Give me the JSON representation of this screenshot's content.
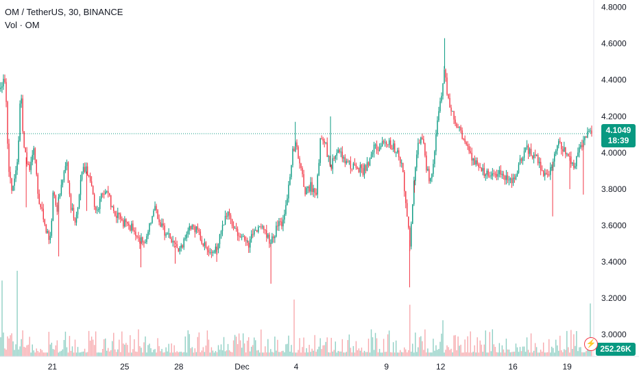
{
  "legend": {
    "symbol_line": "OM / TetherUS, 30, BINANCE",
    "volume_line": "Vol · OM"
  },
  "colors": {
    "up": "#089981",
    "down": "#f23645",
    "up_volume": "#8fcfc4",
    "down_volume": "#f7a9ad",
    "price_line": "#089981"
  },
  "icons": {
    "alert": "lightning-bolt-icon"
  },
  "current": {
    "price": "4.1049",
    "countdown": "18:39",
    "volume": "252.26K"
  },
  "chart_data": {
    "type": "candlestick",
    "symbol": "OM / TetherUS",
    "interval": "30",
    "exchange": "BINANCE",
    "ylim": [
      2.88,
      4.84
    ],
    "y_ticks": [
      "4.8000",
      "4.6000",
      "4.4000",
      "4.2000",
      "4.0000",
      "3.8000",
      "3.6000",
      "3.4000",
      "3.2000",
      "3.0000"
    ],
    "y_tick_values": [
      4.8,
      4.6,
      4.4,
      4.2,
      4.0,
      3.8,
      3.6,
      3.4,
      3.2,
      3.0
    ],
    "x_ticks": [
      "21",
      "25",
      "28",
      "Dec",
      "4",
      "9",
      "12",
      "16",
      "19"
    ],
    "x_tick_positions": [
      3.5,
      7.5,
      10.5,
      14,
      17,
      22,
      25,
      29,
      32
    ],
    "x_range": [
      0.6,
      33.4
    ],
    "last_price": 4.1049,
    "price_path": [
      [
        0.6,
        4.35
      ],
      [
        0.9,
        4.42
      ],
      [
        1.0,
        4.1
      ],
      [
        1.1,
        3.9
      ],
      [
        1.3,
        3.78
      ],
      [
        1.6,
        4.0
      ],
      [
        1.75,
        4.35
      ],
      [
        1.9,
        4.05
      ],
      [
        2.2,
        3.9
      ],
      [
        2.5,
        4.03
      ],
      [
        2.75,
        3.72
      ],
      [
        3.0,
        3.65
      ],
      [
        3.2,
        3.55
      ],
      [
        3.4,
        3.52
      ],
      [
        3.55,
        3.78
      ],
      [
        3.75,
        3.68
      ],
      [
        4.1,
        3.88
      ],
      [
        4.3,
        3.95
      ],
      [
        4.5,
        3.7
      ],
      [
        4.8,
        3.62
      ],
      [
        5.1,
        3.88
      ],
      [
        5.3,
        3.92
      ],
      [
        5.6,
        3.85
      ],
      [
        5.9,
        3.66
      ],
      [
        6.2,
        3.76
      ],
      [
        6.5,
        3.8
      ],
      [
        6.8,
        3.7
      ],
      [
        7.1,
        3.65
      ],
      [
        7.4,
        3.62
      ],
      [
        7.7,
        3.6
      ],
      [
        8.0,
        3.58
      ],
      [
        8.3,
        3.53
      ],
      [
        8.6,
        3.48
      ],
      [
        8.9,
        3.62
      ],
      [
        9.2,
        3.7
      ],
      [
        9.5,
        3.6
      ],
      [
        9.8,
        3.55
      ],
      [
        10.1,
        3.52
      ],
      [
        10.4,
        3.47
      ],
      [
        10.7,
        3.5
      ],
      [
        11.0,
        3.56
      ],
      [
        11.3,
        3.6
      ],
      [
        11.6,
        3.55
      ],
      [
        11.9,
        3.5
      ],
      [
        12.2,
        3.47
      ],
      [
        12.5,
        3.45
      ],
      [
        12.8,
        3.55
      ],
      [
        13.1,
        3.65
      ],
      [
        13.3,
        3.68
      ],
      [
        13.5,
        3.58
      ],
      [
        13.8,
        3.55
      ],
      [
        14.1,
        3.52
      ],
      [
        14.4,
        3.5
      ],
      [
        14.7,
        3.57
      ],
      [
        15.0,
        3.6
      ],
      [
        15.3,
        3.55
      ],
      [
        15.6,
        3.5
      ],
      [
        15.9,
        3.58
      ],
      [
        16.2,
        3.62
      ],
      [
        16.5,
        3.75
      ],
      [
        16.8,
        4.0
      ],
      [
        17.0,
        4.05
      ],
      [
        17.2,
        3.95
      ],
      [
        17.5,
        3.78
      ],
      [
        17.8,
        3.82
      ],
      [
        18.1,
        3.76
      ],
      [
        18.35,
        4.08
      ],
      [
        18.6,
        4.05
      ],
      [
        18.9,
        3.92
      ],
      [
        19.2,
        4.0
      ],
      [
        19.5,
        3.98
      ],
      [
        19.8,
        3.95
      ],
      [
        20.1,
        3.93
      ],
      [
        20.4,
        3.92
      ],
      [
        20.7,
        3.9
      ],
      [
        21.0,
        3.95
      ],
      [
        21.3,
        4.03
      ],
      [
        21.6,
        4.02
      ],
      [
        21.9,
        4.07
      ],
      [
        22.2,
        4.05
      ],
      [
        22.5,
        4.02
      ],
      [
        22.7,
        3.98
      ],
      [
        22.9,
        3.9
      ],
      [
        23.1,
        3.7
      ],
      [
        23.3,
        3.5
      ],
      [
        23.5,
        3.8
      ],
      [
        23.75,
        4.05
      ],
      [
        24.0,
        4.1
      ],
      [
        24.2,
        3.92
      ],
      [
        24.4,
        3.85
      ],
      [
        24.6,
        3.95
      ],
      [
        24.85,
        4.2
      ],
      [
        25.05,
        4.3
      ],
      [
        25.2,
        4.48
      ],
      [
        25.4,
        4.3
      ],
      [
        25.6,
        4.22
      ],
      [
        25.8,
        4.18
      ],
      [
        26.1,
        4.12
      ],
      [
        26.4,
        4.05
      ],
      [
        26.7,
        3.98
      ],
      [
        27.0,
        3.93
      ],
      [
        27.3,
        3.9
      ],
      [
        27.6,
        3.88
      ],
      [
        27.9,
        3.86
      ],
      [
        28.2,
        3.9
      ],
      [
        28.5,
        3.87
      ],
      [
        28.8,
        3.84
      ],
      [
        29.1,
        3.86
      ],
      [
        29.4,
        3.95
      ],
      [
        29.7,
        4.03
      ],
      [
        30.0,
        4.0
      ],
      [
        30.3,
        3.97
      ],
      [
        30.6,
        3.9
      ],
      [
        30.9,
        3.87
      ],
      [
        31.2,
        3.95
      ],
      [
        31.5,
        4.05
      ],
      [
        31.8,
        4.02
      ],
      [
        32.1,
        3.98
      ],
      [
        32.4,
        3.93
      ],
      [
        32.7,
        4.02
      ],
      [
        33.0,
        4.07
      ],
      [
        33.2,
        4.1049
      ]
    ],
    "spikes": [
      [
        2.05,
        3.7
      ],
      [
        3.85,
        3.43
      ],
      [
        5.4,
        3.68
      ],
      [
        8.4,
        3.37
      ],
      [
        10.3,
        3.39
      ],
      [
        12.6,
        3.4
      ],
      [
        14.3,
        3.52
      ],
      [
        15.6,
        3.28
      ],
      [
        16.95,
        4.17
      ],
      [
        18.9,
        4.2
      ],
      [
        23.28,
        3.26
      ],
      [
        23.55,
        3.78
      ],
      [
        25.22,
        4.63
      ],
      [
        27.5,
        3.88
      ],
      [
        31.2,
        3.65
      ],
      [
        32.15,
        3.8
      ],
      [
        32.9,
        3.77
      ]
    ],
    "volume_ylim": [
      0,
      3.5
    ],
    "volume_spikes": [
      [
        0.7,
        2.35
      ],
      [
        1.55,
        3.1
      ],
      [
        16.9,
        2.2
      ],
      [
        23.3,
        2.0
      ],
      [
        25.15,
        1.4
      ],
      [
        27.9,
        1.05
      ],
      [
        33.3,
        2.05
      ]
    ]
  }
}
